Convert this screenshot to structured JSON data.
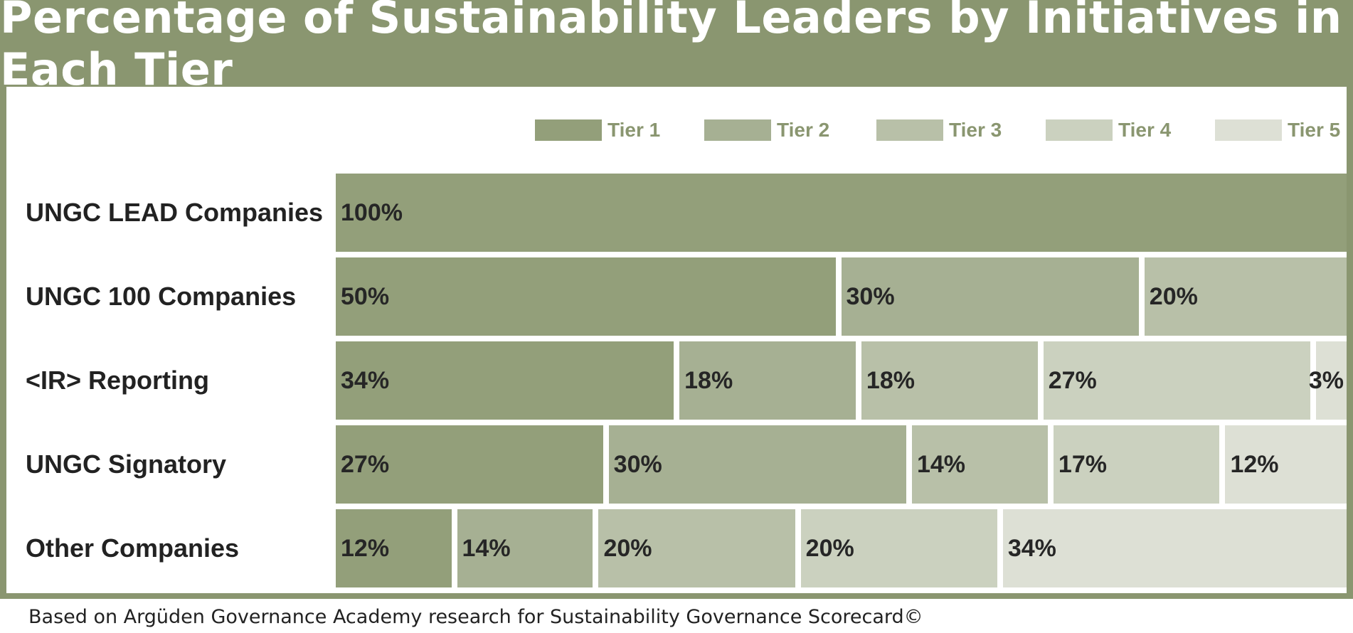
{
  "title": "Percentage of Sustainability Leaders by Initiatives in Each Tier",
  "footnote": "Based on Argüden Governance Academy research for Sustainability Governance Scorecard©",
  "colors": {
    "frame": "#8a9670",
    "tier1": "#939f7a",
    "tier2": "#a6b093",
    "tier3": "#b8c0a8",
    "tier4": "#cbd1bf",
    "tier5": "#dde0d5"
  },
  "chart_data": {
    "type": "bar",
    "orientation": "horizontal",
    "stacked": true,
    "title": "Percentage of Sustainability Leaders by Initiatives in Each Tier",
    "legend_position": "top-right",
    "categories": [
      "UNGC LEAD Companies",
      "UNGC 100 Companies",
      "<IR> Reporting",
      "UNGC Signatory",
      "Other Companies"
    ],
    "series": [
      {
        "name": "Tier 1",
        "values": [
          100,
          50,
          34,
          27,
          12
        ],
        "labels": [
          "100%",
          "50%",
          "34%",
          "27%",
          "12%"
        ]
      },
      {
        "name": "Tier 2",
        "values": [
          0,
          30,
          18,
          30,
          14
        ],
        "labels": [
          "",
          "30%",
          "18%",
          "30%",
          "14%"
        ]
      },
      {
        "name": "Tier 3",
        "values": [
          0,
          20,
          18,
          14,
          20
        ],
        "labels": [
          "",
          "20%",
          "18%",
          "14%",
          "20%"
        ]
      },
      {
        "name": "Tier 4",
        "values": [
          0,
          0,
          27,
          17,
          20
        ],
        "labels": [
          "",
          "",
          "27%",
          "17%",
          "20%"
        ]
      },
      {
        "name": "Tier 5",
        "values": [
          0,
          0,
          3,
          12,
          34
        ],
        "labels": [
          "",
          "",
          "3%",
          "12%",
          "34%"
        ]
      }
    ]
  }
}
